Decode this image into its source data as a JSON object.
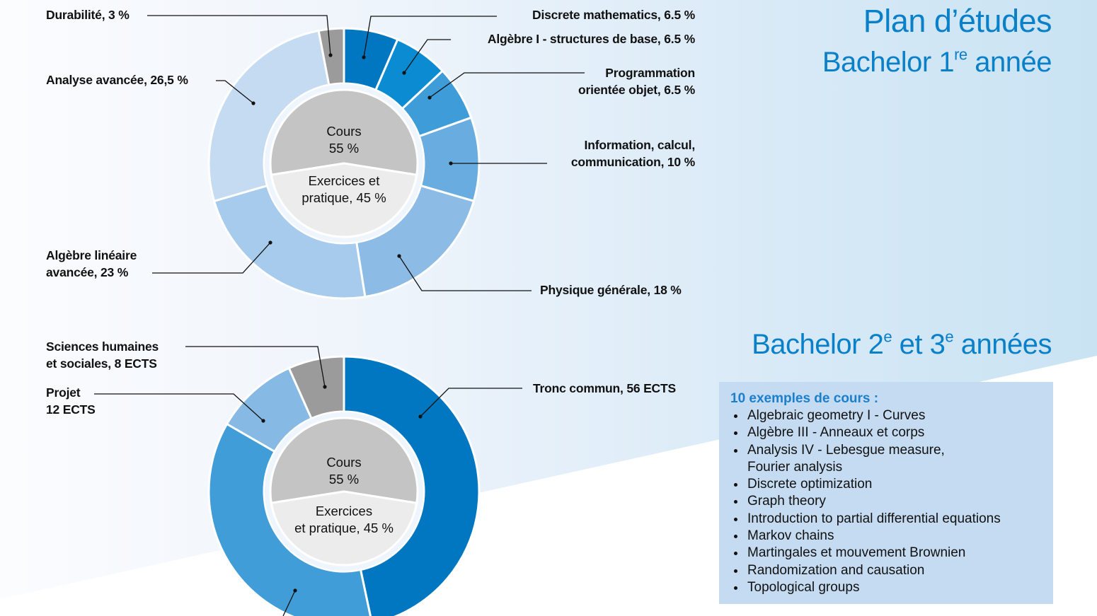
{
  "titles": {
    "main": "Plan d’études",
    "year1": {
      "text": "Bachelor 1",
      "sup": "re",
      "rest": " année"
    },
    "year23": {
      "text": "Bachelor 2",
      "sup1": "e",
      "mid": " et 3",
      "sup2": "e",
      "rest": " années"
    }
  },
  "chart_data": [
    {
      "type": "pie",
      "variant": "donut",
      "unit": "%",
      "slices": [
        {
          "label_lines": [
            "Discrete mathematics, 6.5 %"
          ],
          "value": 6.5,
          "color": "#0077c0"
        },
        {
          "label_lines": [
            "Algèbre I - structures de base, 6.5 %"
          ],
          "value": 6.5,
          "color": "#0a8bd2"
        },
        {
          "label_lines": [
            "Programmation",
            "orientée objet, 6.5 %"
          ],
          "value": 6.5,
          "color": "#3e9dd9"
        },
        {
          "label_lines": [
            "Information, calcul,",
            "communication, 10 %"
          ],
          "value": 10,
          "color": "#69ade0"
        },
        {
          "label_lines": [
            "Physique générale, 18 %"
          ],
          "value": 18,
          "color": "#8cbce6"
        },
        {
          "label_lines": [
            "Algèbre linéaire",
            "avancée, 23 %"
          ],
          "value": 23,
          "color": "#a6cbed"
        },
        {
          "label_lines": [
            "Analyse avancée, 26,5 %"
          ],
          "value": 26.5,
          "color": "#c5dbf2"
        },
        {
          "label_lines": [
            "Durabilité, 3 %"
          ],
          "value": 3,
          "color": "#9b9b9b"
        }
      ],
      "inner": [
        {
          "label_lines": [
            "Cours",
            "55 %"
          ],
          "value": 55,
          "color": "#c4c4c4"
        },
        {
          "label_lines": [
            "Exercices et",
            "pratique, 45 %"
          ],
          "value": 45,
          "color": "#ececec"
        }
      ]
    },
    {
      "type": "pie",
      "variant": "donut",
      "unit": "ECTS",
      "slices": [
        {
          "label_lines": [
            "Tronc commun, 56 ECTS"
          ],
          "value": 56,
          "color": "#0077c0"
        },
        {
          "label_lines": [],
          "value": 44,
          "color": "#409dd8"
        },
        {
          "label_lines": [
            "Projet",
            "12 ECTS"
          ],
          "value": 12,
          "color": "#86b9e4"
        },
        {
          "label_lines": [
            "Sciences humaines",
            "et sociales, 8 ECTS"
          ],
          "value": 8,
          "color": "#9b9b9b"
        }
      ],
      "inner": [
        {
          "label_lines": [
            "Cours",
            "55 %"
          ],
          "value": 55,
          "color": "#c4c4c4"
        },
        {
          "label_lines": [
            "Exercices",
            "et pratique, 45 %"
          ],
          "value": 45,
          "color": "#ececec"
        }
      ]
    }
  ],
  "courses_box": {
    "heading": "10 exemples de cours :",
    "items": [
      "Algebraic geometry I - Curves",
      "Algèbre III - Anneaux et corps",
      "Analysis IV - Lebesgue measure, Fourier analysis",
      "Discrete optimization",
      "Graph theory",
      "Introduction to partial differential equations",
      "Markov chains",
      "Martingales et mouvement Brownien",
      "Randomization and causation",
      "Topological groups"
    ]
  },
  "colors": {
    "title": "#0a80c9",
    "box_bg": "#c5dbf1",
    "box_heading": "#1a7fcc"
  }
}
